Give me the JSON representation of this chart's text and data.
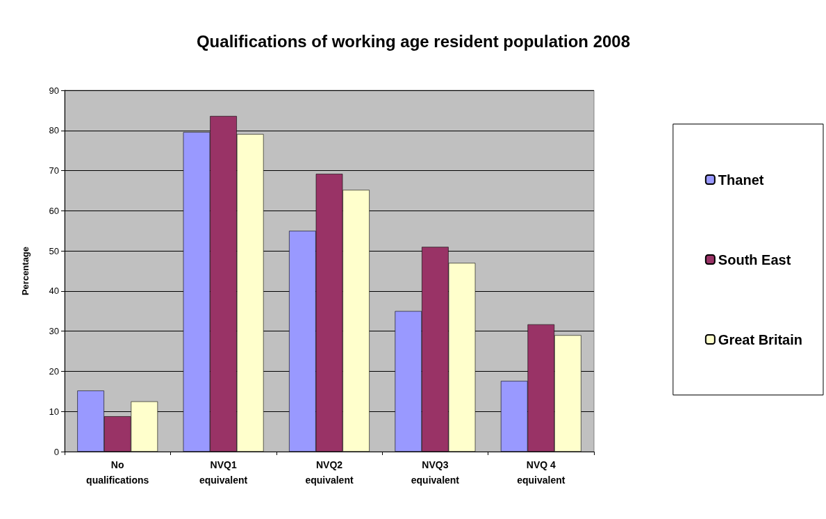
{
  "chart_data": {
    "type": "bar",
    "title": "Qualifications of working age resident population 2008",
    "ylabel": "Percentage",
    "categories": [
      "No\nqualifications",
      "NVQ1\nequivalent",
      "NVQ2\nequivalent",
      "NVQ3\nequivalent",
      "NVQ 4\nequivalent"
    ],
    "series": [
      {
        "name": "Thanet",
        "color": "#9999ff",
        "values": [
          15.2,
          79.6,
          55,
          35,
          17.6
        ]
      },
      {
        "name": "South East",
        "color": "#993366",
        "values": [
          8.8,
          83.6,
          69.2,
          51,
          31.7
        ]
      },
      {
        "name": "Great Britain",
        "color": "#ffffcc",
        "values": [
          12.5,
          79.1,
          65.2,
          47,
          29
        ]
      }
    ],
    "ylim": [
      0,
      90
    ],
    "yticks": [
      0,
      10,
      20,
      30,
      40,
      50,
      60,
      70,
      80,
      90
    ],
    "grid": "y",
    "legend": "right"
  }
}
